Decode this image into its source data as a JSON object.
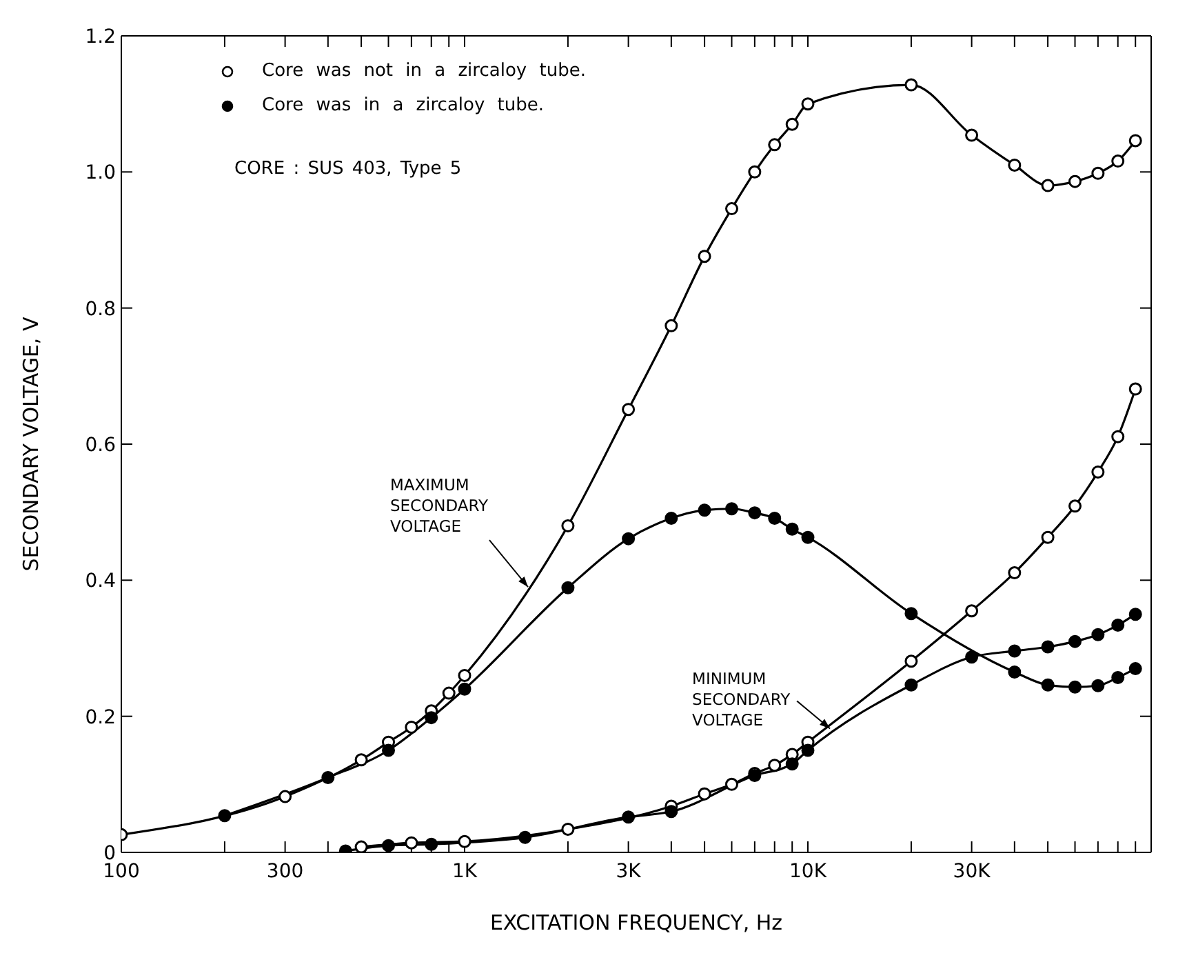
{
  "chart_data": {
    "type": "line",
    "xlabel": "EXCITATION   FREQUENCY,  Hz",
    "ylabel": "SECONDARY   VOLTAGE,  V",
    "log": "x",
    "xlim": [
      100,
      100000
    ],
    "xticks": [
      {
        "value": 100,
        "label": "100"
      },
      {
        "value": 200,
        "label": null
      },
      {
        "value": 300,
        "label": "300"
      },
      {
        "value": 400,
        "label": null
      },
      {
        "value": 500,
        "label": null
      },
      {
        "value": 600,
        "label": null
      },
      {
        "value": 700,
        "label": null
      },
      {
        "value": 800,
        "label": null
      },
      {
        "value": 900,
        "label": null
      },
      {
        "value": 1000,
        "label": "1K"
      },
      {
        "value": 2000,
        "label": null
      },
      {
        "value": 3000,
        "label": "3K"
      },
      {
        "value": 4000,
        "label": null
      },
      {
        "value": 5000,
        "label": null
      },
      {
        "value": 6000,
        "label": null
      },
      {
        "value": 7000,
        "label": null
      },
      {
        "value": 8000,
        "label": null
      },
      {
        "value": 9000,
        "label": null
      },
      {
        "value": 10000,
        "label": "10K"
      },
      {
        "value": 20000,
        "label": null
      },
      {
        "value": 30000,
        "label": "30K"
      },
      {
        "value": 40000,
        "label": null
      },
      {
        "value": 50000,
        "label": null
      },
      {
        "value": 60000,
        "label": null
      },
      {
        "value": 70000,
        "label": null
      },
      {
        "value": 80000,
        "label": null
      },
      {
        "value": 90000,
        "label": null
      }
    ],
    "ylim": [
      0,
      1.2
    ],
    "yticks": [
      0,
      0.2,
      0.4,
      0.6,
      0.8,
      {
        "value": 1.0,
        "label": "1.0"
      },
      1.2
    ],
    "grid": false,
    "legend": "top left",
    "marker": "circle",
    "line_style": "solid",
    "series": [
      {
        "name": "Core was not in a zircaloy tube.",
        "color": "#000000",
        "x": [
          100,
          300,
          500,
          600,
          700,
          800,
          900,
          1000,
          2000,
          3000,
          4000,
          5000,
          6000,
          7000,
          8000,
          9000,
          10000,
          20000,
          30000,
          40000,
          50000,
          60000,
          70000,
          80000,
          90000
        ],
        "values": [
          0.026,
          0.082,
          0.136,
          0.162,
          0.184,
          0.208,
          0.234,
          0.26,
          0.48,
          0.651,
          0.774,
          0.876,
          0.946,
          1.0,
          1.04,
          1.07,
          1.1,
          1.128,
          1.054,
          1.01,
          0.98,
          0.986,
          0.998,
          1.016,
          1.046
        ]
      },
      {
        "name": "Core was in a zircaloy tube.",
        "color": "#000000",
        "x": [
          200,
          400,
          600,
          800,
          1000,
          2000,
          3000,
          4000,
          5000,
          6000,
          7000,
          8000,
          9000,
          10000,
          20000,
          40000,
          50000,
          60000,
          70000,
          80000,
          90000
        ],
        "values": [
          0.054,
          0.11,
          0.15,
          0.198,
          0.24,
          0.389,
          0.461,
          0.491,
          0.503,
          0.505,
          0.499,
          0.491,
          0.475,
          0.463,
          0.351,
          0.265,
          0.246,
          0.243,
          0.245,
          0.257,
          0.27
        ]
      },
      {
        "color": "#000000",
        "x": [
          500,
          700,
          1000,
          2000,
          4000,
          5000,
          6000,
          7000,
          8000,
          9000,
          10000,
          20000,
          30000,
          40000,
          50000,
          60000,
          70000,
          80000,
          90000
        ],
        "values": [
          0.008,
          0.014,
          0.016,
          0.034,
          0.068,
          0.086,
          0.1,
          0.116,
          0.128,
          0.144,
          0.162,
          0.281,
          0.355,
          0.411,
          0.463,
          0.509,
          0.559,
          0.611,
          0.681
        ]
      },
      {
        "color": "#000000",
        "x": [
          450,
          600,
          800,
          1500,
          3000,
          4000,
          7000,
          9000,
          10000,
          20000,
          30000,
          40000,
          50000,
          60000,
          70000,
          80000,
          90000
        ],
        "values": [
          0.002,
          0.01,
          0.012,
          0.022,
          0.052,
          0.06,
          0.113,
          0.13,
          0.15,
          0.246,
          0.287,
          0.296,
          0.302,
          0.31,
          0.32,
          0.334,
          0.35
        ]
      }
    ],
    "annotations": [
      "CORE : SUS 403, Type 5",
      {
        "text": "MAXIMUM\nSECONDARY\nVOLTAGE",
        "x": 1530,
        "y": 0.39
      },
      {
        "text": "MINIMUM\nSECONDARY\nVOLTAGE",
        "x": 11600,
        "y": 0.182
      }
    ]
  }
}
